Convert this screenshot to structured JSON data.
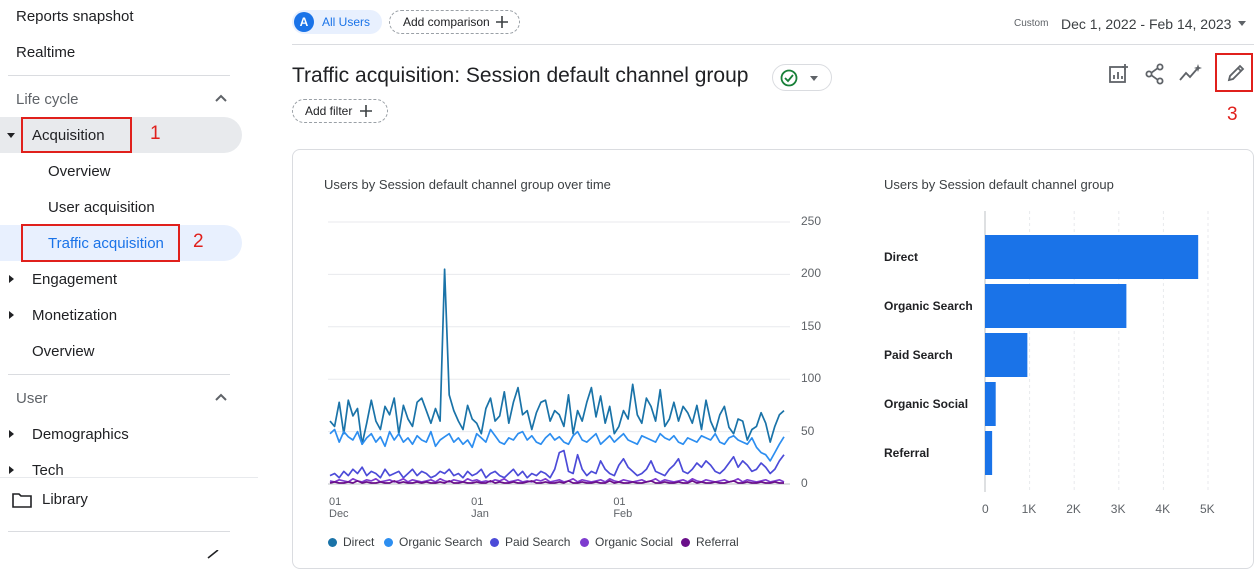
{
  "sidebar": {
    "top_items": [
      "Reports snapshot",
      "Realtime"
    ],
    "lifecycle": {
      "header": "Life cycle",
      "acquisition": "Acquisition",
      "acquisition_children": [
        "Overview",
        "User acquisition",
        "Traffic acquisition"
      ],
      "engagement": "Engagement",
      "monetization": "Monetization",
      "overview": "Overview"
    },
    "user": {
      "header": "User",
      "demographics": "Demographics",
      "tech": "Tech"
    },
    "library": "Library"
  },
  "annotations": [
    "1",
    "2",
    "3"
  ],
  "header": {
    "segment_avatar": "A",
    "segment": "All Users",
    "add_comparison": "Add comparison",
    "date_label": "Custom",
    "date_range": "Dec 1, 2022 - Feb 14, 2023"
  },
  "page": {
    "title": "Traffic acquisition: Session default channel group",
    "add_filter": "Add filter"
  },
  "colors": {
    "direct": "#1a73a8",
    "organic_search": "#2d8ef0",
    "paid_search": "#4c4bd8",
    "organic_social": "#7e3ccf",
    "referral": "#6a0f8a",
    "bar": "#1a73e8",
    "accent": "#1a73e8"
  },
  "chart_data": [
    {
      "type": "line",
      "title": "Users by Session default channel group over time",
      "x_ticks": [
        {
          "day": "01",
          "month": "Dec"
        },
        {
          "day": "01",
          "month": "Jan"
        },
        {
          "day": "01",
          "month": "Feb"
        }
      ],
      "ylim": [
        0,
        250
      ],
      "y_ticks": [
        0,
        50,
        100,
        150,
        200,
        250
      ],
      "series": [
        {
          "name": "Direct",
          "values": [
            60,
            55,
            78,
            48,
            80,
            65,
            72,
            38,
            58,
            80,
            60,
            52,
            74,
            66,
            82,
            48,
            75,
            62,
            55,
            78,
            82,
            70,
            58,
            72,
            60,
            205,
            85,
            70,
            60,
            52,
            75,
            62,
            58,
            48,
            72,
            82,
            60,
            65,
            88,
            58,
            78,
            92,
            66,
            70,
            52,
            68,
            78,
            80,
            60,
            70,
            66,
            55,
            85,
            48,
            70,
            60,
            78,
            92,
            64,
            84,
            58,
            74,
            48,
            55,
            70,
            62,
            95,
            66,
            58,
            82,
            74,
            60,
            90,
            55,
            62,
            78,
            60,
            74,
            68,
            58,
            75,
            52,
            80,
            60,
            50,
            66,
            74,
            54,
            48,
            62,
            60,
            42,
            52,
            55,
            68,
            58,
            40,
            55,
            66,
            70
          ]
        },
        {
          "name": "Organic Search",
          "values": [
            48,
            52,
            40,
            50,
            45,
            42,
            50,
            38,
            44,
            48,
            40,
            45,
            36,
            50,
            42,
            48,
            40,
            44,
            38,
            46,
            42,
            40,
            50,
            36,
            42,
            45,
            48,
            40,
            44,
            38,
            42,
            35,
            48,
            44,
            40,
            52,
            46,
            40,
            38,
            44,
            42,
            48,
            50,
            42,
            46,
            40,
            38,
            44,
            48,
            42,
            45,
            40,
            38,
            46,
            50,
            42,
            40,
            44,
            48,
            38,
            42,
            46,
            40,
            44,
            48,
            42,
            40,
            38,
            46,
            44,
            42,
            40,
            48,
            44,
            42,
            46,
            40,
            38,
            44,
            42,
            40,
            46,
            44,
            42,
            48,
            40,
            38,
            44,
            46,
            42,
            40,
            38,
            44,
            35,
            30,
            28,
            22,
            30,
            38,
            45
          ]
        },
        {
          "name": "Paid Search",
          "values": [
            8,
            10,
            6,
            12,
            8,
            14,
            10,
            16,
            8,
            12,
            10,
            6,
            14,
            8,
            10,
            12,
            6,
            10,
            14,
            8,
            12,
            10,
            6,
            8,
            12,
            10,
            14,
            8,
            10,
            6,
            12,
            8,
            10,
            14,
            6,
            10,
            12,
            8,
            6,
            10,
            14,
            8,
            12,
            6,
            10,
            8,
            12,
            10,
            6,
            14,
            30,
            32,
            12,
            10,
            28,
            14,
            8,
            12,
            10,
            22,
            14,
            10,
            8,
            18,
            24,
            16,
            12,
            8,
            10,
            14,
            22,
            12,
            10,
            8,
            14,
            18,
            24,
            12,
            10,
            14,
            20,
            16,
            22,
            18,
            12,
            10,
            14,
            20,
            26,
            16,
            22,
            18,
            12,
            14,
            20,
            16,
            10,
            14,
            22,
            28
          ]
        },
        {
          "name": "Organic Social",
          "values": [
            3,
            2,
            4,
            3,
            2,
            5,
            3,
            2,
            4,
            3,
            5,
            2,
            3,
            4,
            2,
            3,
            5,
            2,
            4,
            3,
            2,
            3,
            4,
            2,
            5,
            3,
            2,
            4,
            3,
            2,
            5,
            3,
            4,
            2,
            3,
            2,
            4,
            3,
            5,
            2,
            3,
            4,
            2,
            3,
            2,
            4,
            3,
            5,
            2,
            3,
            4,
            2,
            3,
            5,
            2,
            4,
            3,
            2,
            3,
            4,
            2,
            5,
            3,
            2,
            4,
            3,
            2,
            3,
            4,
            2,
            3,
            5,
            2,
            4,
            3,
            2,
            3,
            4,
            2,
            5,
            3,
            2,
            4,
            3,
            2,
            3,
            4,
            2,
            3,
            5,
            2,
            4,
            3,
            2,
            3,
            4,
            2,
            3,
            4,
            2
          ]
        },
        {
          "name": "Referral",
          "values": [
            1,
            2,
            1,
            1,
            2,
            1,
            3,
            1,
            2,
            1,
            1,
            2,
            1,
            1,
            3,
            1,
            2,
            1,
            1,
            2,
            1,
            2,
            1,
            1,
            2,
            1,
            3,
            1,
            1,
            2,
            1,
            1,
            2,
            1,
            1,
            3,
            1,
            2,
            1,
            1,
            2,
            1,
            1,
            2,
            3,
            1,
            1,
            2,
            1,
            1,
            2,
            1,
            3,
            1,
            1,
            2,
            1,
            1,
            2,
            1,
            1,
            3,
            1,
            2,
            1,
            1,
            2,
            1,
            1,
            2,
            3,
            1,
            1,
            2,
            1,
            1,
            2,
            1,
            1,
            3,
            1,
            2,
            1,
            1,
            2,
            1,
            1,
            2,
            3,
            1,
            1,
            2,
            1,
            1,
            2,
            1,
            1,
            2,
            1,
            1
          ]
        }
      ]
    },
    {
      "type": "bar",
      "title": "Users by Session default channel group",
      "categories": [
        "Direct",
        "Organic Search",
        "Paid Search",
        "Organic Social",
        "Referral"
      ],
      "values": [
        4780,
        3170,
        950,
        240,
        160
      ],
      "xlim": [
        0,
        5000
      ],
      "x_ticks": [
        "0",
        "1K",
        "2K",
        "3K",
        "4K",
        "5K"
      ]
    }
  ]
}
